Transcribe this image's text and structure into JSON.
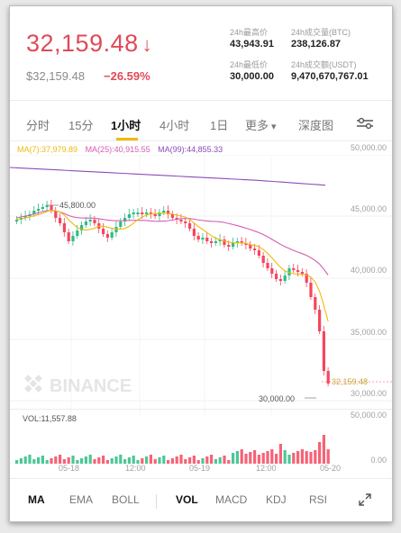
{
  "header": {
    "price": "32,159.48",
    "price_arrow": "↓",
    "sub_price": "$32,159.48",
    "change": "−26.59%",
    "stats": {
      "high_label": "24h最高价",
      "high_value": "43,943.91",
      "vol_btc_label": "24h成交量(BTC)",
      "vol_btc_value": "238,126.87",
      "low_label": "24h最低价",
      "low_value": "30,000.00",
      "vol_usdt_label": "24h成交额(USDT)",
      "vol_usdt_value": "9,470,670,767.01"
    }
  },
  "intervals": {
    "tabs": [
      "分时",
      "15分",
      "1小时",
      "4小时",
      "1日",
      "更多"
    ],
    "active": "1小时",
    "more_arrow": "▾",
    "depth_label": "深度图"
  },
  "ma_legend": {
    "ma7": "MA(7):37,979.89",
    "ma25": "MA(25):40,915.55",
    "ma99": "MA(99):44,855.33"
  },
  "price_axis": [
    "50,000.00",
    "45,000.00",
    "40,000.00",
    "35,000.00",
    "30,000.00"
  ],
  "current_price_label": "32,159.48",
  "annotations": {
    "high": "45,800.00",
    "low": "30,000.00"
  },
  "watermark": "BINANCE",
  "volume": {
    "label": "VOL:11,557.88",
    "axis": [
      "50,000.00",
      "0.00"
    ]
  },
  "time_axis": [
    "05-18",
    "12:00",
    "05-19",
    "12:00",
    "05-20"
  ],
  "bottom_tabs": [
    "MA",
    "EMA",
    "BOLL",
    "VOL",
    "MACD",
    "KDJ",
    "RSI"
  ],
  "bottom_active": [
    "MA",
    "VOL"
  ],
  "colors": {
    "up": "#2dbd85",
    "down": "#f6465d",
    "ma7": "#f0b90b",
    "ma25": "#d65cb0",
    "ma99": "#8b4cb8",
    "accent": "#f0b90b"
  }
}
